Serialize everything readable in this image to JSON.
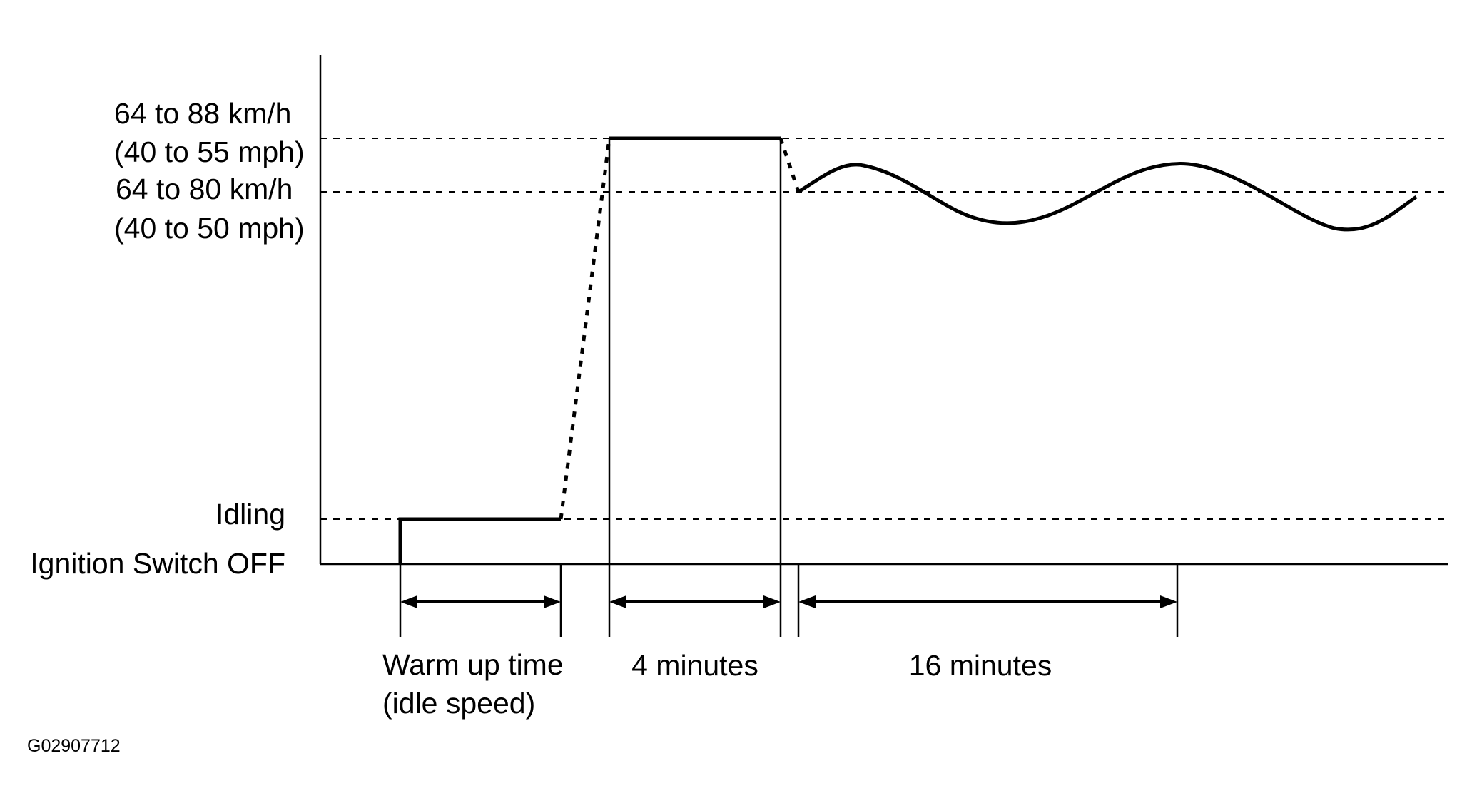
{
  "levels": {
    "speed_high_kmh": "64 to 88 km/h",
    "speed_high_mph": "(40 to 55 mph)",
    "speed_low_kmh": "64 to 80 km/h",
    "speed_low_mph": "(40 to 50 mph)",
    "idling": "Idling",
    "ignition_off": "Ignition Switch OFF"
  },
  "durations": {
    "warmup_line1": "Warm up time",
    "warmup_line2": "(idle speed)",
    "four_minutes": "4 minutes",
    "sixteen_minutes": "16 minutes"
  },
  "figure_code": "G02907712"
}
